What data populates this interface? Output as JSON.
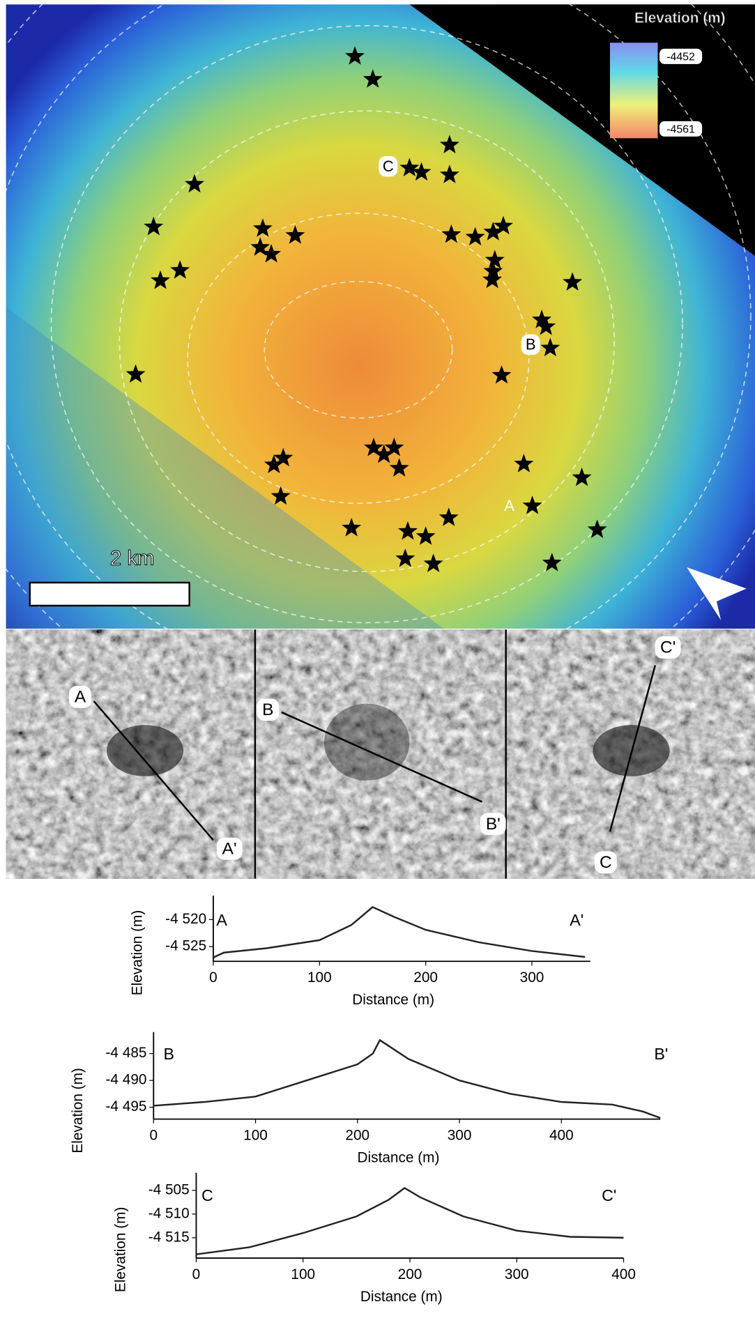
{
  "map": {
    "colorbar": {
      "title": "Elevation (m)",
      "max": "-4452",
      "min": "-4561"
    },
    "site_labels": [
      "C",
      "B",
      "A"
    ],
    "scale_bar": "2 km"
  },
  "panels": [
    {
      "start": "A",
      "end": "A'"
    },
    {
      "start": "B",
      "end": "B'"
    },
    {
      "start": "C'",
      "end": "C"
    }
  ],
  "chart_data": [
    {
      "type": "line",
      "annotations": [
        "A",
        "A'"
      ],
      "x_label": "Distance (m)",
      "y_label": "Elevation (m)",
      "color": "#222222",
      "x": [
        0,
        10,
        50,
        100,
        130,
        150,
        170,
        200,
        250,
        300,
        350
      ],
      "values": [
        -4527.0,
        -4526.1,
        -4525.3,
        -4523.8,
        -4521.0,
        -4517.7,
        -4519.5,
        -4521.9,
        -4524.2,
        -4525.8,
        -4526.9
      ],
      "xlim": [
        0,
        355
      ],
      "ylim": [
        -4527.7,
        -4515.6
      ],
      "xticks": [
        0,
        100,
        200,
        300
      ],
      "yticks": [
        {
          "value": -4520,
          "label": "-4 520"
        },
        {
          "value": -4525,
          "label": "-4 525"
        }
      ]
    },
    {
      "type": "line",
      "annotations": [
        "B",
        "B'"
      ],
      "x_label": "Distance (m)",
      "y_label": "Elevation (m)",
      "color": "#222222",
      "x": [
        0,
        50,
        100,
        150,
        200,
        215,
        222,
        250,
        300,
        350,
        400,
        450,
        480,
        497
      ],
      "values": [
        -4494.7,
        -4494.0,
        -4493.0,
        -4490.0,
        -4487.0,
        -4485.0,
        -4482.5,
        -4486.0,
        -4490.0,
        -4492.5,
        -4494.0,
        -4494.5,
        -4495.8,
        -4497.0
      ],
      "xlim": [
        0,
        497
      ],
      "ylim": [
        -4497.2,
        -4481
      ],
      "xticks": [
        0,
        100,
        200,
        300,
        400
      ],
      "yticks": [
        {
          "value": -4485,
          "label": "-4 485"
        },
        {
          "value": -4490,
          "label": "-4 490"
        },
        {
          "value": -4495,
          "label": "-4 495"
        }
      ]
    },
    {
      "type": "line",
      "annotations": [
        "C",
        "C'"
      ],
      "x_label": "Distance (m)",
      "y_label": "Elevation (m)",
      "color": "#222222",
      "x": [
        0,
        50,
        100,
        150,
        180,
        195,
        210,
        250,
        300,
        350,
        400
      ],
      "values": [
        -4518.5,
        -4517.0,
        -4514.0,
        -4510.5,
        -4507.0,
        -4504.5,
        -4506.5,
        -4510.5,
        -4513.5,
        -4514.8,
        -4515.0
      ],
      "xlim": [
        0,
        400
      ],
      "ylim": [
        -4519.3,
        -4501.3
      ],
      "xticks": [
        0,
        100,
        200,
        300,
        400
      ],
      "yticks": [
        {
          "value": -4505,
          "label": "-4 505"
        },
        {
          "value": -4510,
          "label": "-4 510"
        },
        {
          "value": -4515,
          "label": "-4 515"
        }
      ]
    }
  ]
}
